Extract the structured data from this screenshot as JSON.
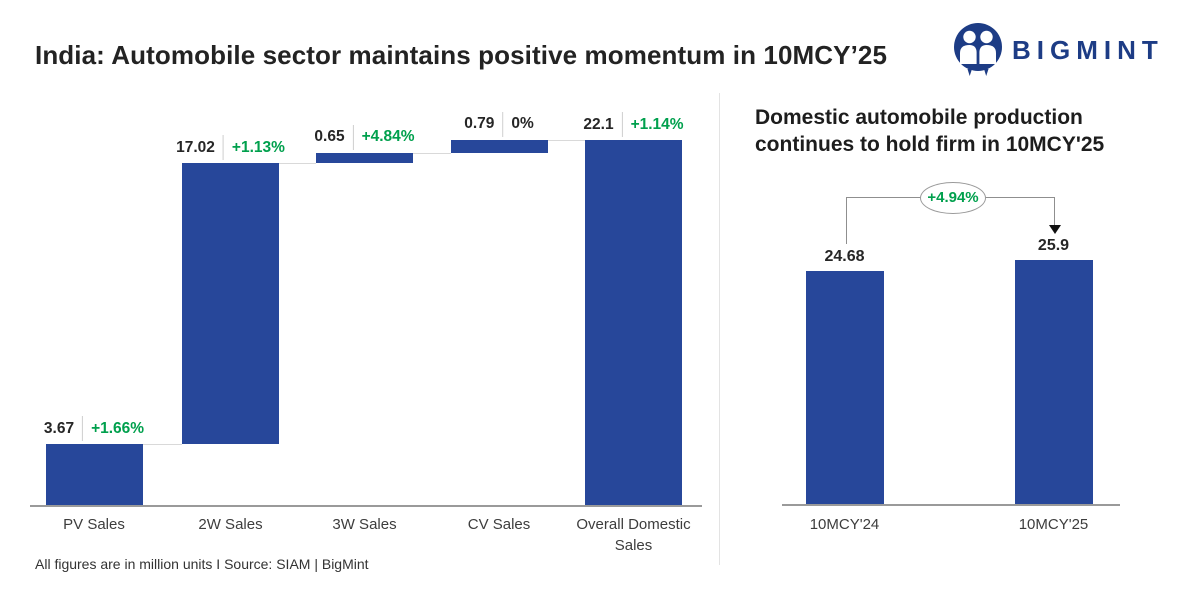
{
  "header": {
    "title": "India: Automobile sector maintains positive momentum in 10MCY’25",
    "brand": "BIGMINT"
  },
  "footer": {
    "note": "All figures are in million units  I  Source: SIAM | BigMint"
  },
  "colors": {
    "bar_blue": "#27479a",
    "positive_green": "#00a04d",
    "brand_navy": "#1d3c85"
  },
  "chart_data": [
    {
      "type": "bar",
      "subtype": "waterfall",
      "categories": [
        "PV Sales",
        "2W Sales",
        "3W Sales",
        "CV Sales",
        "Overall Domestic Sales"
      ],
      "values": [
        3.67,
        17.02,
        0.65,
        0.79,
        22.1
      ],
      "value_labels": [
        "3.67",
        "17.02",
        "0.65",
        "0.79",
        "22.1"
      ],
      "pct_labels": [
        "+1.66%",
        "+1.13%",
        "+4.84%",
        "0%",
        "+1.14%"
      ],
      "pct_positive": [
        true,
        true,
        true,
        false,
        true
      ],
      "is_total": [
        false,
        false,
        false,
        false,
        true
      ],
      "unit": "million units",
      "ylim": [
        0,
        22.13
      ],
      "grid": false,
      "legend": false
    },
    {
      "type": "bar",
      "title": "Domestic automobile production continues to hold firm in 10MCY'25",
      "title_lines": [
        "Domestic automobile production",
        "continues to hold firm in 10MCY'25"
      ],
      "categories": [
        "10MCY'24",
        "10MCY'25"
      ],
      "values": [
        24.68,
        25.9
      ],
      "value_labels": [
        "24.68",
        "25.9"
      ],
      "growth_label": "+4.94%",
      "unit": "million units",
      "grid": false,
      "legend": false
    }
  ]
}
